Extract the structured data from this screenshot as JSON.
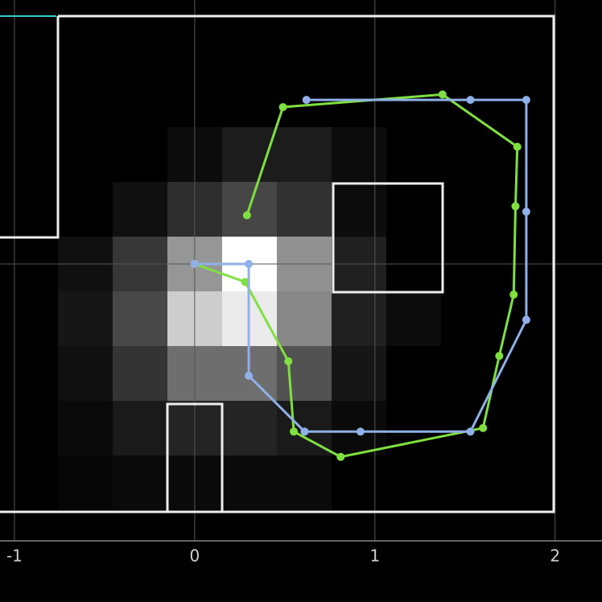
{
  "chart_data": {
    "type": "line",
    "xlim": [
      -1.08,
      2.26
    ],
    "ylim": [
      -1.875,
      1.464
    ],
    "xticks": [
      -1,
      0,
      1,
      2
    ],
    "grid": true,
    "series": [
      {
        "name": null,
        "color": "#7fe040",
        "x": [
          0,
          0.28,
          0.52,
          0.55,
          0.81,
          1.6,
          1.69,
          1.77,
          1.78,
          1.79,
          1.375,
          0.49,
          0.29
        ],
        "values": [
          0,
          -0.1,
          -0.54,
          -0.93,
          -1.07,
          -0.91,
          -0.51,
          -0.17,
          0.32,
          0.65,
          0.94,
          0.87,
          0.27
        ]
      },
      {
        "name": null,
        "color": "#8fb0e8",
        "x": [
          0,
          0.3,
          0.3,
          0.61,
          0.92,
          1.53,
          1.84,
          1.84,
          1.84,
          1.53,
          0.62
        ],
        "values": [
          0,
          0,
          -0.62,
          -0.93,
          -0.93,
          -0.93,
          -0.31,
          0.29,
          0.91,
          0.91,
          0.91
        ]
      }
    ]
  }
}
